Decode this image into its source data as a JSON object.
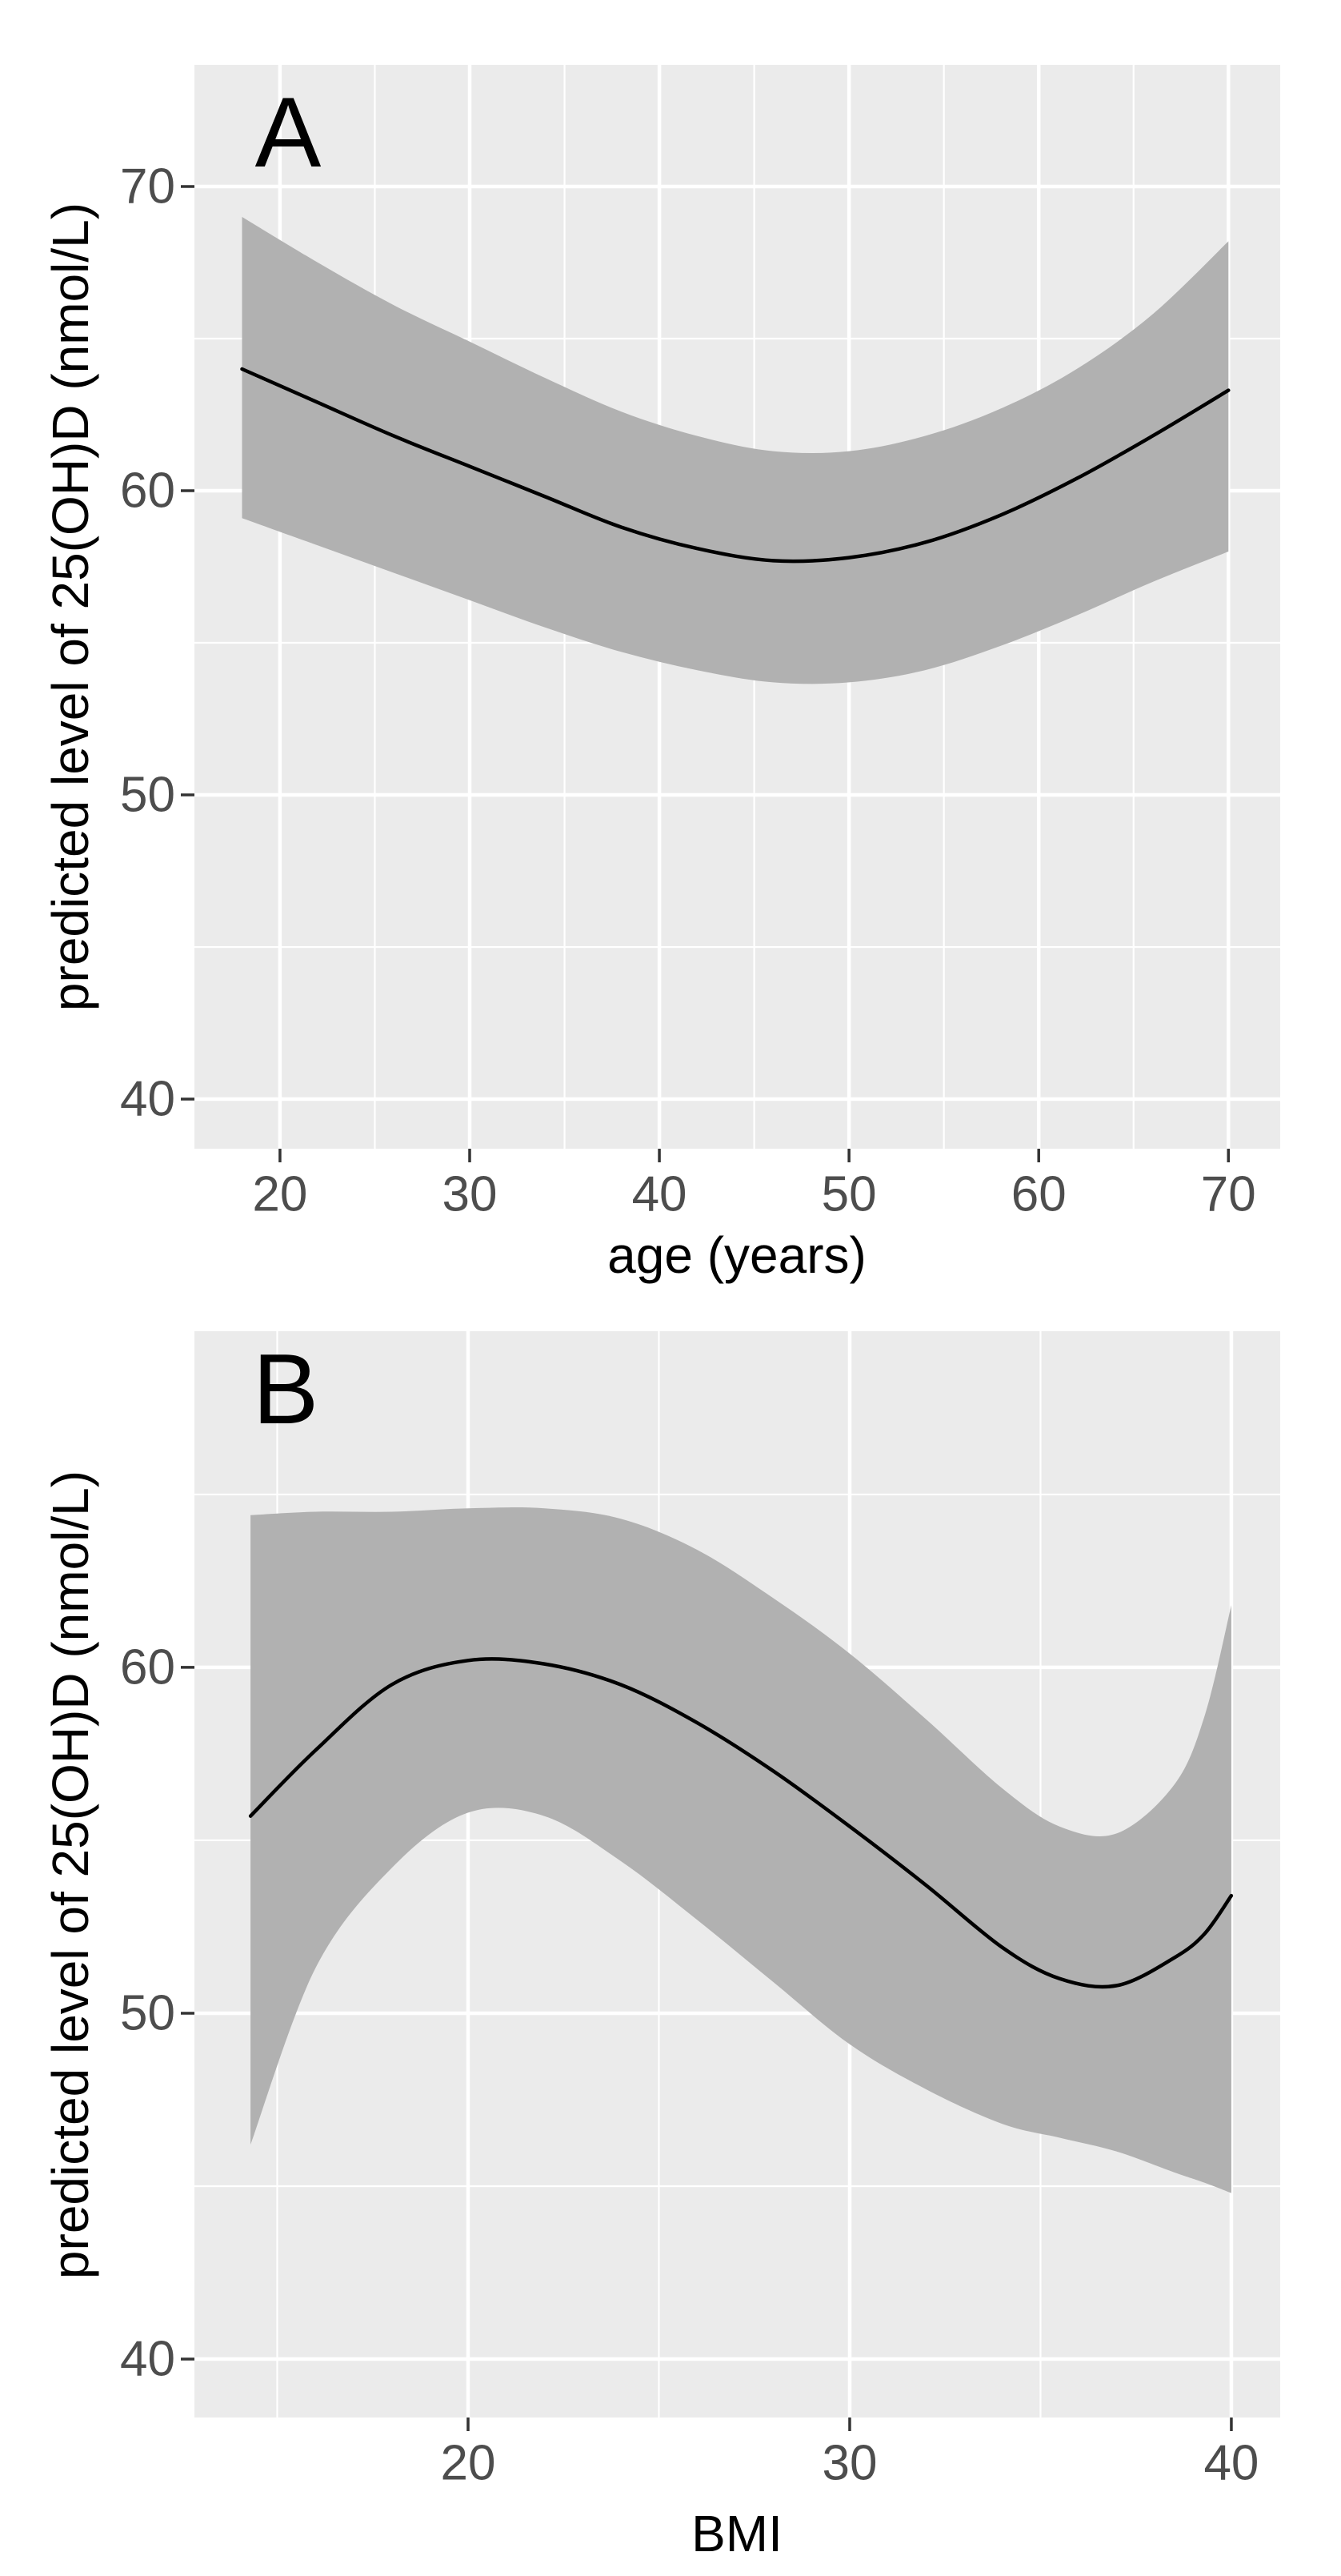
{
  "figure": {
    "description": "Two stacked smooth-regression panels with 95% confidence ribbons",
    "panels": [
      "A",
      "B"
    ]
  },
  "style": {
    "panel_background": "#ebebeb",
    "gridline_color": "#ffffff",
    "ribbon_color": "#b1b1b1",
    "line_color": "#000000",
    "tick_label_color": "#4d4d4d",
    "axis_title_color": "#000000",
    "tick_mark_color": "#333333"
  },
  "chart_data": [
    {
      "type": "line",
      "panel_label": "A",
      "xlabel": "age (years)",
      "ylabel": "predicted level of 25(OH)D (nmol/L)",
      "legend": "none",
      "grid": "on",
      "x_ticks": [
        20,
        30,
        40,
        50,
        60,
        70
      ],
      "x_minor_ticks": [
        25,
        35,
        45,
        55,
        65
      ],
      "y_ticks": [
        40,
        50,
        60,
        70
      ],
      "y_minor_ticks": [
        45,
        55,
        65
      ],
      "xlim": [
        15.49,
        72.73
      ],
      "ylim": [
        38.37,
        74.0
      ],
      "x": [
        18,
        22,
        26,
        30,
        34,
        38,
        42,
        46,
        50,
        54,
        58,
        62,
        66,
        70
      ],
      "series": [
        {
          "name": "predicted mean",
          "values": [
            64.0,
            62.9,
            61.8,
            60.8,
            59.8,
            58.8,
            58.1,
            57.7,
            57.8,
            58.3,
            59.2,
            60.4,
            61.8,
            63.3
          ]
        }
      ],
      "ribbon": {
        "name": "95% confidence band",
        "upper": [
          69.0,
          67.5,
          66.1,
          64.9,
          63.7,
          62.6,
          61.8,
          61.3,
          61.3,
          61.8,
          62.7,
          64.0,
          65.8,
          68.2
        ],
        "lower": [
          59.1,
          58.2,
          57.3,
          56.4,
          55.5,
          54.7,
          54.1,
          53.7,
          53.7,
          54.1,
          54.9,
          55.9,
          57.0,
          58.0
        ]
      }
    },
    {
      "type": "line",
      "panel_label": "B",
      "xlabel": "BMI",
      "ylabel": "predicted level of 25(OH)D (nmol/L)",
      "legend": "none",
      "grid": "on",
      "x_ticks": [
        20,
        30,
        40
      ],
      "x_minor_ticks": [
        15,
        25,
        35
      ],
      "y_ticks": [
        40,
        50,
        60
      ],
      "y_minor_ticks": [
        45,
        55,
        65
      ],
      "xlim": [
        12.83,
        41.28
      ],
      "ylim": [
        38.31,
        69.72
      ],
      "x": [
        14.3,
        16,
        18,
        20,
        22,
        24,
        26,
        28,
        30,
        32,
        34,
        35.5,
        37,
        38.5,
        39.3,
        40
      ],
      "series": [
        {
          "name": "predicted mean",
          "values": [
            55.7,
            57.6,
            59.5,
            60.2,
            60.1,
            59.5,
            58.4,
            57.0,
            55.4,
            53.7,
            51.9,
            51.0,
            50.8,
            51.6,
            52.3,
            53.4
          ]
        }
      ],
      "ribbon": {
        "name": "95% confidence band",
        "upper": [
          64.4,
          64.5,
          64.5,
          64.6,
          64.6,
          64.3,
          63.4,
          62.0,
          60.4,
          58.5,
          56.5,
          55.4,
          55.2,
          56.6,
          58.6,
          61.8
        ],
        "lower": [
          46.2,
          51.3,
          54.2,
          55.8,
          55.7,
          54.4,
          52.7,
          50.9,
          49.1,
          47.8,
          46.8,
          46.4,
          46.0,
          45.4,
          45.1,
          44.8
        ]
      }
    }
  ]
}
